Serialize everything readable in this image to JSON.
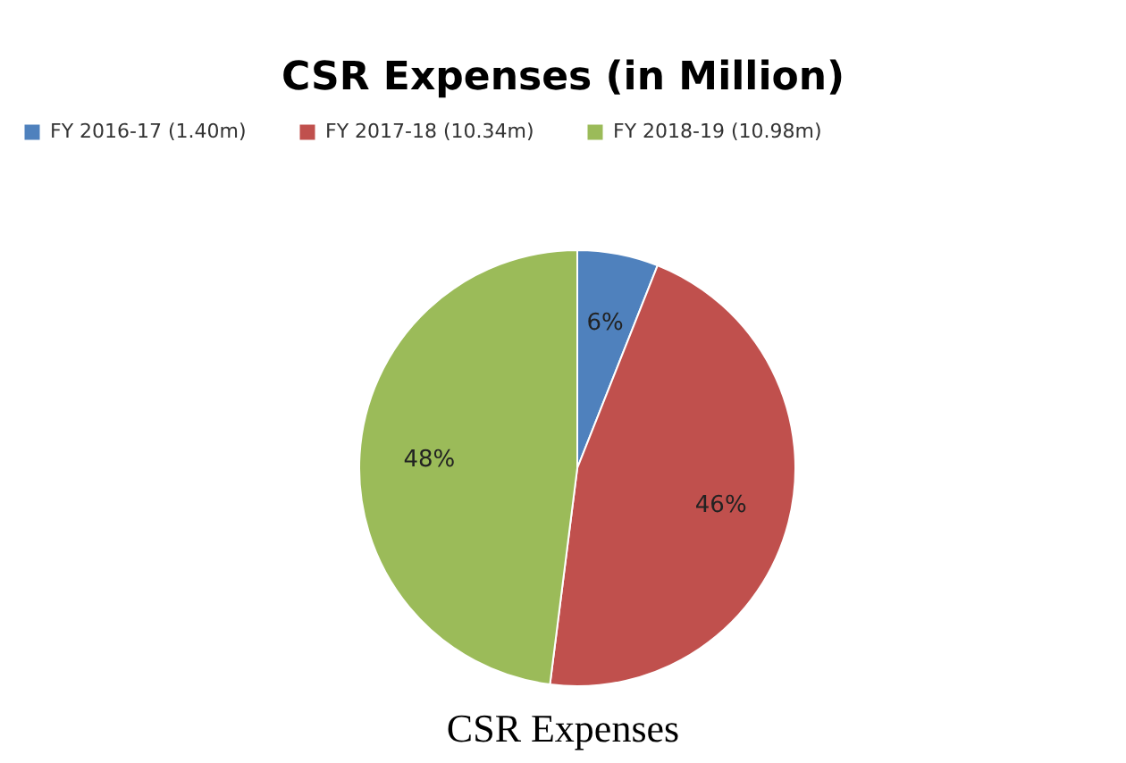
{
  "chart_data": {
    "type": "pie",
    "title": "CSR Expenses (in Million)",
    "categories": [
      "FY 2016-17 (1.40m)",
      "FY 2017-18 (10.34m)",
      "FY 2018-19 (10.98m)"
    ],
    "values": [
      6,
      46,
      48
    ],
    "colors": [
      "#4f81bd",
      "#c0504d",
      "#9bbb59"
    ],
    "value_labels": [
      "6%",
      "46%",
      "48%"
    ],
    "legend": "top",
    "annotations": [
      "CSR Expenses"
    ]
  }
}
